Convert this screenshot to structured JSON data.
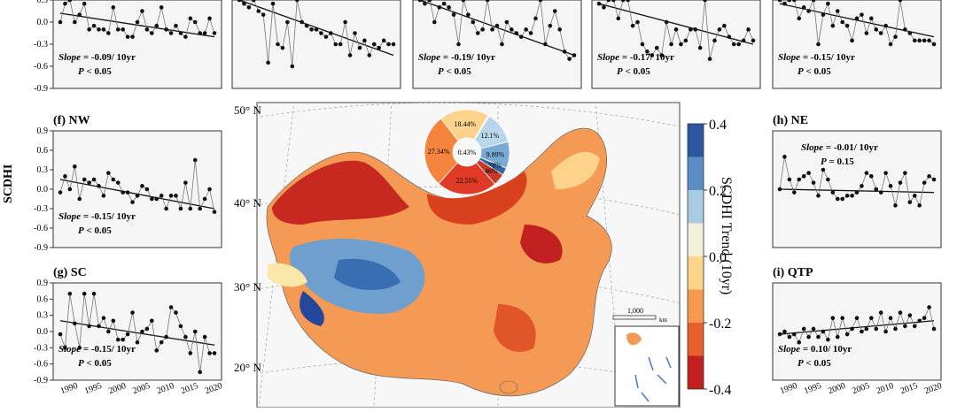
{
  "figure": {
    "y_axis_label": "SCDHI",
    "colorbar_title": "SCDHI Trend (10yr)",
    "colorbar_ticks": [
      "0.4",
      "0.2",
      "0.0",
      "-0.2",
      "-0.4"
    ],
    "colorbar_colors": [
      "#2c56a0",
      "#5b8ec6",
      "#a8cbe3",
      "#f3f0d9",
      "#fbd58a",
      "#f79a4f",
      "#e6612d",
      "#c11f20"
    ],
    "map_lat_labels": [
      "50° N",
      "40° N",
      "30° N",
      "20° N"
    ],
    "scale_bar_label": "1,000",
    "scale_bar_unit": "km",
    "pie_labels": [
      "12.1%",
      "9.89%",
      "2.78%",
      "4.46%",
      "22.55%",
      "27.34%",
      "18.44%",
      "0.43%"
    ],
    "pie_values": [
      12.1,
      9.89,
      2.78,
      4.46,
      22.55,
      27.34,
      18.44,
      0.43
    ],
    "pie_colors": [
      "#b7d6ea",
      "#7aaad3",
      "#3466a8",
      "#c33a2a",
      "#e03a26",
      "#f5843f",
      "#fdd28b",
      "#eeeeee"
    ]
  },
  "chart_data": [
    {
      "type": "line",
      "panel": "top-1",
      "title": "",
      "yticks": [
        "0.3",
        "0.0",
        "-0.3",
        "-0.6",
        "-0.9"
      ],
      "ylim": [
        -0.9,
        0.3
      ],
      "values": [
        0.0,
        0.25,
        0.3,
        0.0,
        0.1,
        0.25,
        -0.1,
        -0.05,
        -0.1,
        -0.1,
        -0.15,
        0.2,
        -0.1,
        -0.1,
        -0.2,
        -0.2,
        0.0,
        0.15,
        -0.1,
        -0.15,
        -0.05,
        0.2,
        -0.1,
        -0.15,
        -0.05,
        -0.15,
        -0.2,
        0.05,
        0.0,
        -0.15,
        -0.15,
        0.05,
        -0.15
      ],
      "trend": [
        0.12,
        -0.2
      ],
      "slope_label": "Slope",
      "slope_value": "= -0.09/ 10yr",
      "p_label": "P",
      "p_value": "< 0.05"
    },
    {
      "type": "line",
      "panel": "top-2",
      "title": "",
      "yticks": [],
      "ylim": [
        -0.9,
        0.3
      ],
      "values": [
        0.3,
        0.25,
        0.2,
        0.3,
        0.15,
        0.1,
        -0.55,
        0.25,
        -0.3,
        -0.35,
        0.0,
        -0.6,
        0.3,
        0.0,
        -0.05,
        -0.1,
        -0.1,
        -0.15,
        -0.2,
        -0.15,
        -0.3,
        -0.3,
        0.0,
        -0.45,
        -0.15,
        -0.35,
        -0.25,
        -0.45,
        -0.3,
        -0.35,
        -0.25,
        -0.3,
        -0.3
      ],
      "trend": [
        0.3,
        -0.45
      ],
      "slope_label": "",
      "slope_value": "",
      "p_label": "",
      "p_value": ""
    },
    {
      "type": "line",
      "panel": "top-3",
      "title": "",
      "yticks": [],
      "ylim": [
        -0.9,
        0.3
      ],
      "values": [
        0.3,
        0.25,
        0.3,
        0.0,
        0.2,
        0.25,
        0.2,
        0.1,
        -0.3,
        0.3,
        0.1,
        0.0,
        -0.15,
        -0.1,
        0.3,
        -0.1,
        -0.05,
        -0.3,
        0.0,
        -0.1,
        -0.15,
        -0.2,
        -0.1,
        -0.15,
        0.05,
        0.3,
        -0.3,
        -0.05,
        0.15,
        -0.1,
        -0.4,
        -0.5,
        -0.45
      ],
      "trend": [
        0.3,
        -0.45
      ],
      "slope_label": "Slope",
      "slope_value": "= -0.19/ 10yr",
      "p_label": "P",
      "p_value": "< 0.05"
    },
    {
      "type": "line",
      "panel": "top-4",
      "title": "",
      "yticks": [],
      "ylim": [
        -0.9,
        0.3
      ],
      "values": [
        0.25,
        0.2,
        0.3,
        0.3,
        0.05,
        0.3,
        0.3,
        -0.05,
        0.0,
        -0.3,
        -0.4,
        -0.45,
        -0.35,
        -0.45,
        0.0,
        -0.3,
        -0.1,
        -0.3,
        -0.25,
        -0.1,
        -0.1,
        -0.35,
        0.3,
        -0.5,
        -0.25,
        -0.1,
        -0.05,
        -0.2,
        -0.3,
        -0.3,
        -0.25,
        -0.1,
        -0.25
      ],
      "trend": [
        0.25,
        -0.3
      ],
      "slope_label": "Slope",
      "slope_value": "= -0.17/ 10yr",
      "p_label": "P",
      "p_value": "< 0.05"
    },
    {
      "type": "line",
      "panel": "top-5",
      "title": "",
      "yticks": [],
      "ylim": [
        -0.9,
        0.3
      ],
      "values": [
        0.3,
        0.25,
        0.3,
        0.3,
        0.05,
        0.2,
        0.15,
        0.3,
        -0.3,
        0.1,
        0.25,
        -0.05,
        0.15,
        0.0,
        -0.05,
        -0.25,
        0.05,
        0.1,
        -0.15,
        0.05,
        -0.1,
        -0.15,
        -0.05,
        -0.3,
        -0.2,
        0.3,
        -0.1,
        -0.15,
        -0.25,
        -0.25,
        -0.25,
        -0.25,
        -0.3
      ],
      "trend": [
        0.25,
        -0.2
      ],
      "slope_label": "Slope",
      "slope_value": "= -0.15/ 10yr",
      "p_label": "P",
      "p_value": "< 0.05"
    },
    {
      "type": "line",
      "panel": "f",
      "title": "(f) NW",
      "yticks": [
        "0.9",
        "0.6",
        "0.3",
        "0.0",
        "-0.3",
        "-0.6",
        "-0.9"
      ],
      "ylim": [
        -0.9,
        0.9
      ],
      "values": [
        -0.05,
        0.2,
        0.0,
        0.35,
        -0.15,
        0.15,
        0.1,
        0.15,
        0.05,
        -0.1,
        0.25,
        0.15,
        0.1,
        -0.05,
        -0.05,
        -0.2,
        -0.1,
        0.05,
        0.0,
        -0.15,
        -0.15,
        -0.1,
        -0.3,
        -0.1,
        -0.1,
        -0.3,
        0.1,
        -0.3,
        0.45,
        -0.3,
        -0.15,
        0.0,
        -0.35
      ],
      "trend": [
        0.15,
        -0.3
      ],
      "slope_label": "Slope",
      "slope_value": "= -0.15/ 10yr",
      "p_label": "P",
      "p_value": "< 0.05"
    },
    {
      "type": "line",
      "panel": "g",
      "title": "(g) SC",
      "yticks": [
        "0.9",
        "0.6",
        "0.3",
        "0.0",
        "-0.3",
        "-0.6",
        "-0.9"
      ],
      "ylim": [
        -0.9,
        0.9
      ],
      "values": [
        -0.05,
        -0.3,
        0.7,
        0.15,
        -0.3,
        0.7,
        0.1,
        0.7,
        0.1,
        0.25,
        0.0,
        0.2,
        -0.15,
        -0.15,
        -0.05,
        0.35,
        -0.2,
        0.0,
        0.05,
        0.2,
        -0.35,
        -0.2,
        -0.1,
        0.45,
        0.35,
        0.1,
        -0.1,
        -0.4,
        0.0,
        -0.75,
        -0.1,
        -0.4,
        -0.4
      ],
      "trend": [
        0.2,
        -0.25
      ],
      "slope_label": "Slope",
      "slope_value": "= -0.15/ 10yr",
      "p_label": "P",
      "p_value": "< 0.05",
      "xticks": [
        "1990",
        "1995",
        "2000",
        "2005",
        "2010",
        "2015",
        "2020"
      ]
    },
    {
      "type": "line",
      "panel": "h",
      "title": "(h) NE",
      "yticks": [],
      "ylim": [
        -0.9,
        0.9
      ],
      "values": [
        0.0,
        0.5,
        0.15,
        -0.05,
        0.15,
        0.2,
        0.25,
        0.1,
        -0.1,
        0.3,
        0.15,
        -0.05,
        -0.15,
        -0.15,
        -0.1,
        -0.1,
        -0.05,
        0.05,
        0.25,
        0.2,
        0.0,
        -0.05,
        0.25,
        0.05,
        -0.25,
        0.1,
        0.25,
        -0.2,
        -0.1,
        -0.25,
        0.1,
        0.2,
        0.15
      ],
      "trend": [
        0.0,
        -0.05
      ],
      "slope_label": "Slope",
      "slope_value": "= -0.01/ 10yr",
      "p_label": "P",
      "p_value": "= 0.15"
    },
    {
      "type": "line",
      "panel": "i",
      "title": "(i) QTP",
      "yticks": [],
      "ylim": [
        -0.9,
        0.9
      ],
      "values": [
        -0.05,
        0.0,
        -0.1,
        -0.05,
        -0.2,
        0.05,
        -0.1,
        0.05,
        -0.1,
        0.0,
        -0.15,
        0.25,
        -0.1,
        0.25,
        -0.05,
        0.05,
        0.25,
        0.0,
        0.05,
        0.25,
        0.05,
        0.35,
        0.0,
        0.25,
        0.05,
        0.35,
        0.1,
        0.3,
        0.1,
        0.2,
        0.25,
        0.45,
        0.05
      ],
      "trend": [
        -0.05,
        0.2
      ],
      "slope_label": "Slope",
      "slope_value": "= 0.10/ 10yr",
      "p_label": "P",
      "p_value": "< 0.05",
      "xticks": [
        "1990",
        "1995",
        "2000",
        "2005",
        "2010",
        "2015",
        "2020"
      ]
    }
  ]
}
